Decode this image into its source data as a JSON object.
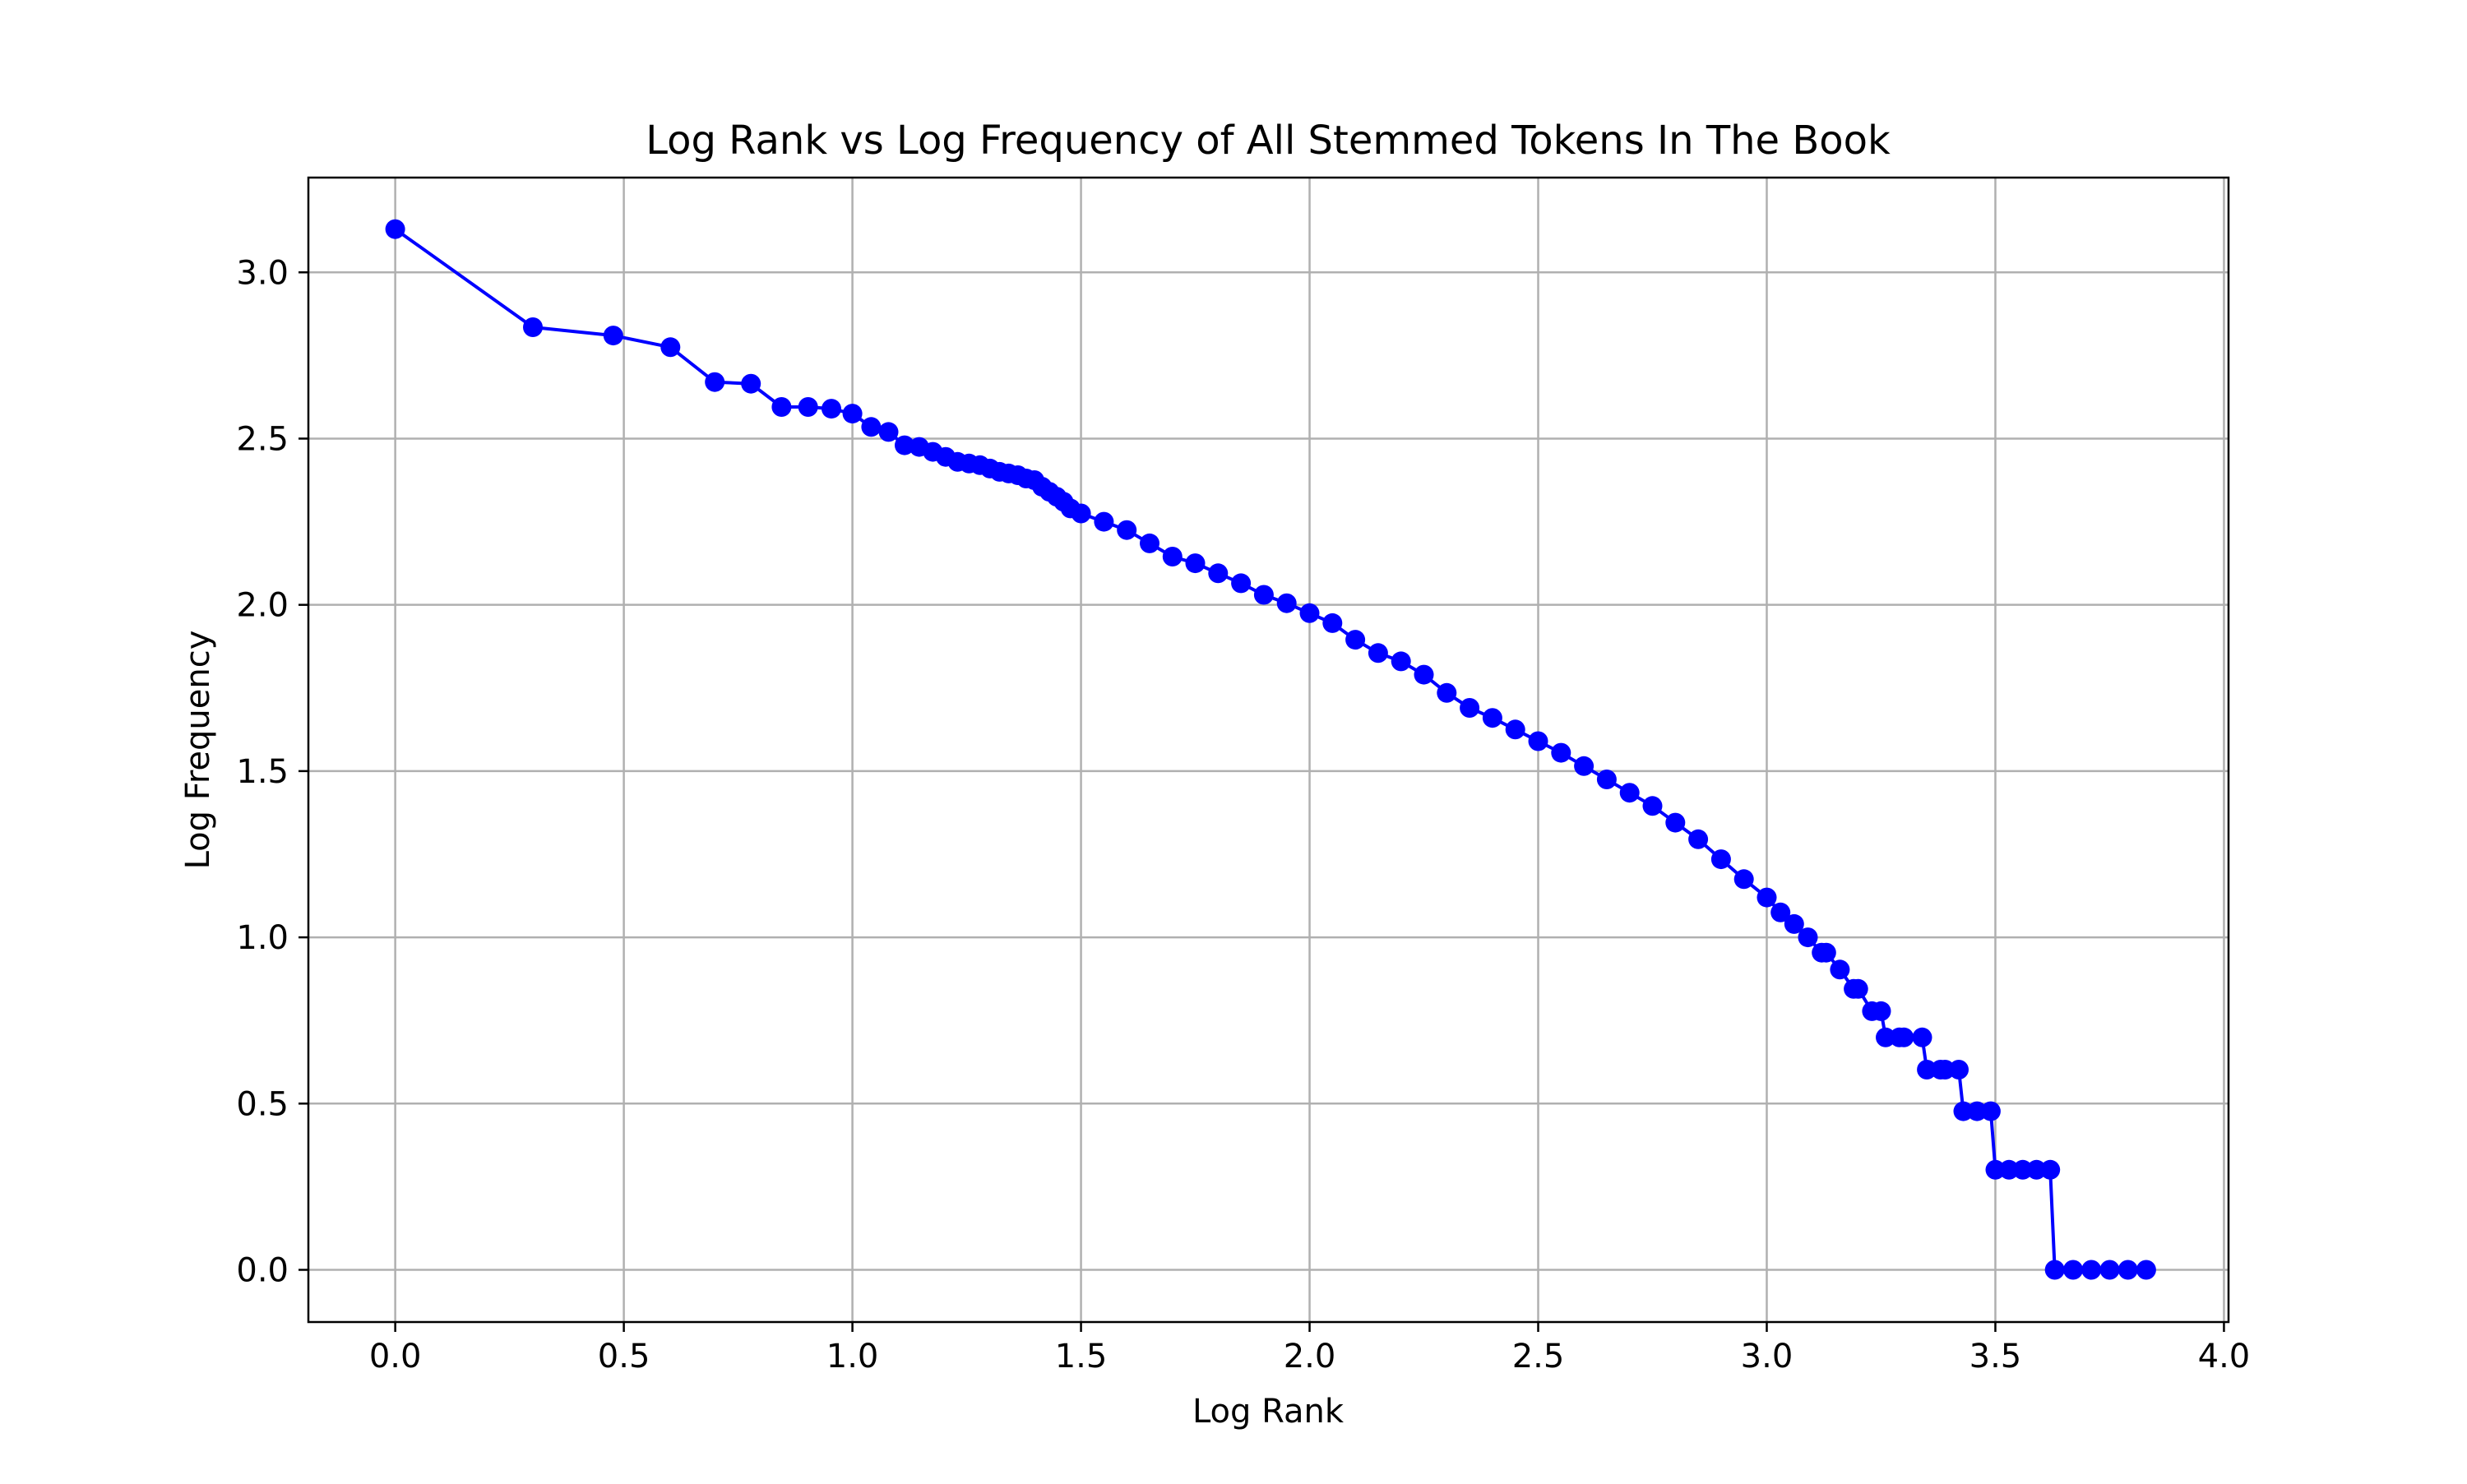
{
  "chart_data": {
    "type": "line",
    "title": "Log Rank vs Log Frequency of All Stemmed Tokens In The Book",
    "xlabel": "Log Rank",
    "ylabel": "Log Frequency",
    "xlim": [
      -0.19,
      4.01
    ],
    "ylim": [
      -0.157,
      3.285
    ],
    "xticks": [
      0.0,
      0.5,
      1.0,
      1.5,
      2.0,
      2.5,
      3.0,
      3.5,
      4.0
    ],
    "yticks": [
      0.0,
      0.5,
      1.0,
      1.5,
      2.0,
      2.5,
      3.0
    ],
    "xtick_labels": [
      "0.0",
      "0.5",
      "1.0",
      "1.5",
      "2.0",
      "2.5",
      "3.0",
      "3.5",
      "4.0"
    ],
    "ytick_labels": [
      "0.0",
      "0.5",
      "1.0",
      "1.5",
      "2.0",
      "2.5",
      "3.0"
    ],
    "grid": true,
    "series_color": "#0000ff",
    "series": [
      {
        "marker": "circle",
        "x": [
          0.0,
          0.301,
          0.477,
          0.602,
          0.699,
          0.778,
          0.845,
          0.903,
          0.954,
          1.0,
          1.041,
          1.079,
          1.114,
          1.146,
          1.176,
          1.204,
          1.23,
          1.255,
          1.279,
          1.301,
          1.322,
          1.342,
          1.362,
          1.38,
          1.398,
          1.415,
          1.431,
          1.447,
          1.462,
          1.477,
          1.5,
          1.55,
          1.6,
          1.65,
          1.7,
          1.75,
          1.8,
          1.85,
          1.9,
          1.95,
          2.0,
          2.05,
          2.1,
          2.15,
          2.2,
          2.25,
          2.3,
          2.35,
          2.4,
          2.45,
          2.5,
          2.55,
          2.6,
          2.65,
          2.7,
          2.75,
          2.8,
          2.85,
          2.9,
          2.95,
          3.0,
          3.03,
          3.06,
          3.09,
          3.12,
          3.13,
          3.16,
          3.19,
          3.2,
          3.23,
          3.25,
          3.26,
          3.29,
          3.3,
          3.34,
          3.35,
          3.38,
          3.39,
          3.42,
          3.43,
          3.46,
          3.49,
          3.5,
          3.53,
          3.56,
          3.59,
          3.62,
          3.63,
          3.67,
          3.71,
          3.75,
          3.79,
          3.83
        ],
        "y": [
          3.13,
          2.835,
          2.81,
          2.775,
          2.67,
          2.665,
          2.595,
          2.595,
          2.59,
          2.575,
          2.535,
          2.52,
          2.48,
          2.475,
          2.46,
          2.445,
          2.43,
          2.425,
          2.42,
          2.41,
          2.4,
          2.395,
          2.39,
          2.38,
          2.375,
          2.355,
          2.34,
          2.325,
          2.31,
          2.29,
          2.275,
          2.25,
          2.225,
          2.185,
          2.145,
          2.125,
          2.095,
          2.065,
          2.03,
          2.005,
          1.975,
          1.945,
          1.895,
          1.855,
          1.83,
          1.79,
          1.735,
          1.69,
          1.66,
          1.625,
          1.59,
          1.555,
          1.515,
          1.475,
          1.435,
          1.395,
          1.345,
          1.295,
          1.235,
          1.175,
          1.12,
          1.075,
          1.04,
          1.0,
          0.954,
          0.954,
          0.903,
          0.845,
          0.845,
          0.778,
          0.778,
          0.699,
          0.699,
          0.699,
          0.699,
          0.602,
          0.602,
          0.602,
          0.602,
          0.477,
          0.477,
          0.477,
          0.301,
          0.301,
          0.301,
          0.301,
          0.301,
          0.0,
          0.0,
          0.0,
          0.0,
          0.0,
          0.0
        ]
      }
    ]
  }
}
